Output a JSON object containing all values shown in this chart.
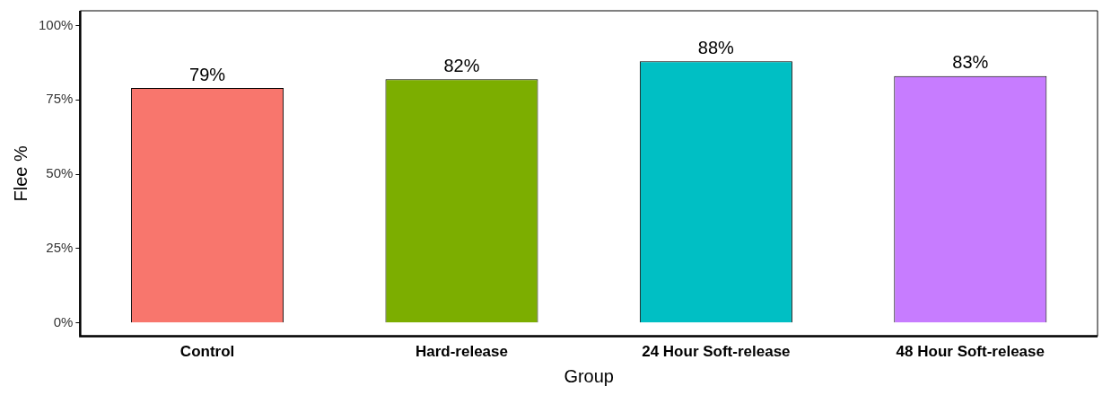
{
  "chart_data": {
    "type": "bar",
    "xlabel": "Group",
    "ylabel": "Flee %",
    "categories": [
      "Control",
      "Hard-release",
      "24 Hour Soft-release",
      "48 Hour Soft-release"
    ],
    "values": [
      79,
      82,
      88,
      83
    ],
    "colors": [
      "#f8766d",
      "#7cae00",
      "#00bfc4",
      "#c77cff"
    ],
    "value_labels": [
      "79%",
      "82%",
      "88%",
      "83%"
    ],
    "ylim": [
      -4.5,
      105
    ],
    "yticks": [
      {
        "value": 0,
        "label": "0%"
      },
      {
        "value": 25,
        "label": "25%"
      },
      {
        "value": 50,
        "label": "50%"
      },
      {
        "value": 75,
        "label": "75%"
      },
      {
        "value": 100,
        "label": "100%"
      }
    ],
    "grid": false,
    "legend": false
  }
}
